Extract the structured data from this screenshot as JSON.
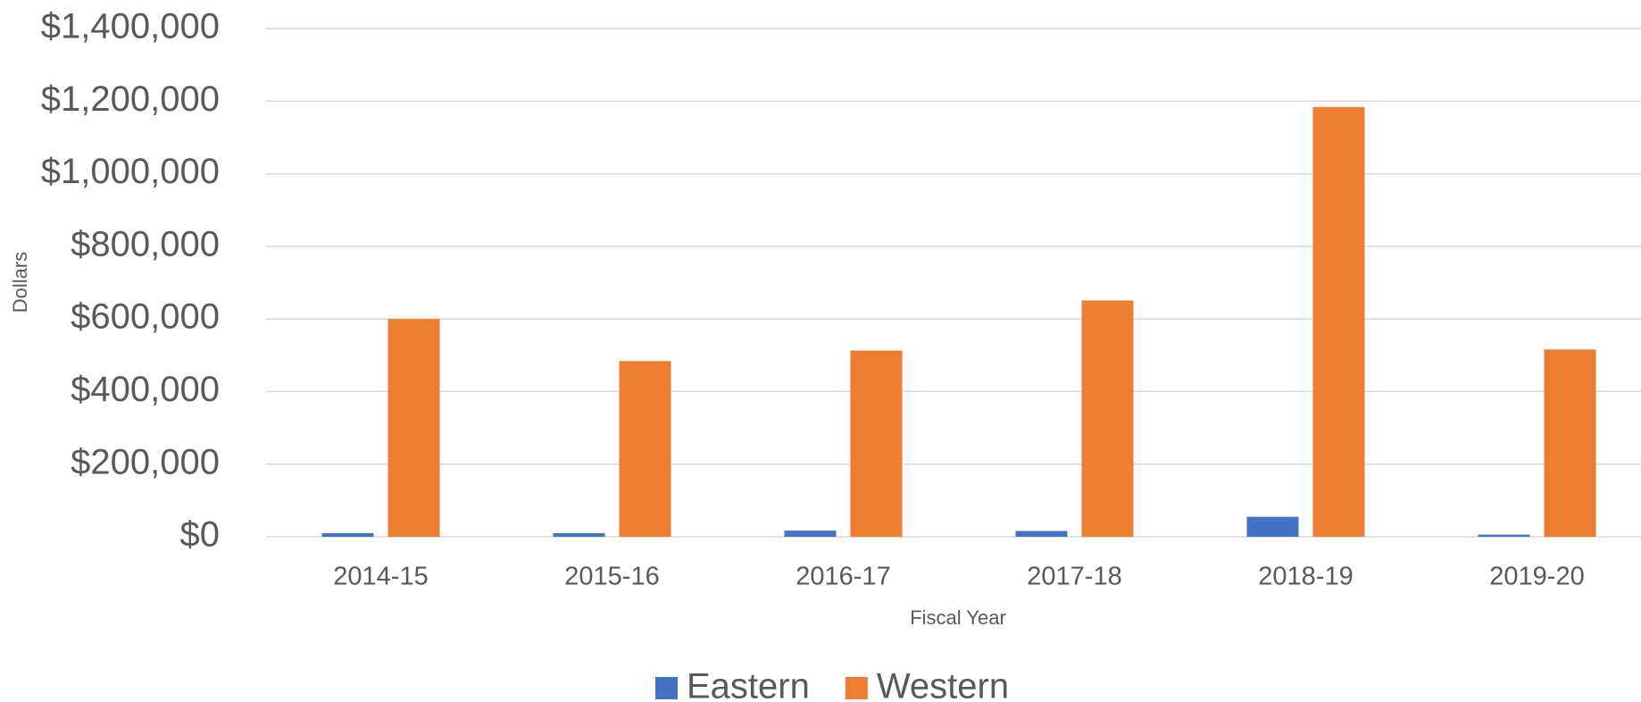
{
  "chart_data": {
    "type": "bar",
    "categories": [
      "2014-15",
      "2015-16",
      "2016-17",
      "2017-18",
      "2018-19",
      "2019-20"
    ],
    "series": [
      {
        "name": "Eastern",
        "color": "#4472c4",
        "values": [
          10000,
          10000,
          17000,
          16000,
          55000,
          6000
        ]
      },
      {
        "name": "Western",
        "color": "#ed7d31",
        "values": [
          600000,
          484000,
          513000,
          651000,
          1184000,
          516000
        ]
      }
    ],
    "x_label": "Fiscal Year",
    "y_label": "Dollars",
    "ylim": [
      0,
      1400000
    ],
    "yticks": [
      {
        "value": 0,
        "label": "$0"
      },
      {
        "value": 200000,
        "label": "$200,000"
      },
      {
        "value": 400000,
        "label": "$400,000"
      },
      {
        "value": 600000,
        "label": "$600,000"
      },
      {
        "value": 800000,
        "label": "$800,000"
      },
      {
        "value": 1000000,
        "label": "$1,000,000"
      },
      {
        "value": 1200000,
        "label": "$1,200,000"
      },
      {
        "value": 1400000,
        "label": "$1,400,000"
      }
    ],
    "grid": true,
    "legend": "bottom"
  }
}
